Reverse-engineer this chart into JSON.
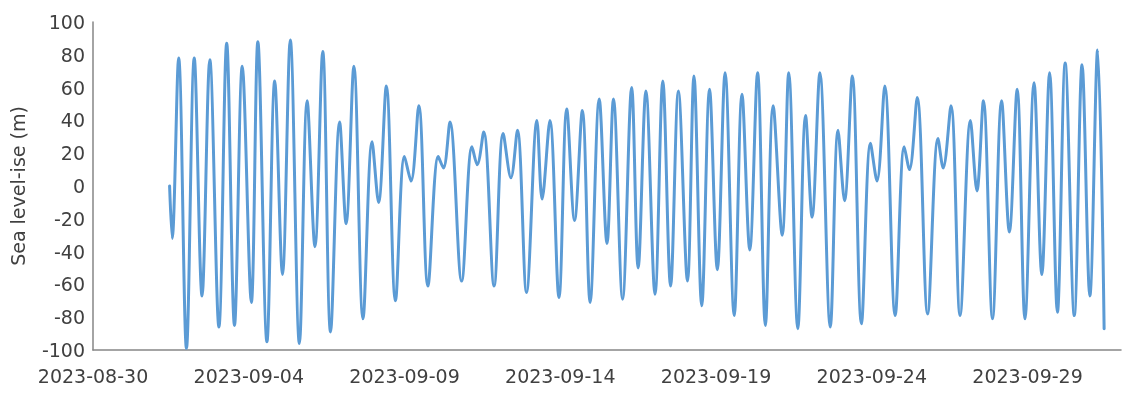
{
  "chart_data": {
    "type": "line",
    "ylabel": "Sea level-ise (m)",
    "color": "#5b9bd5",
    "marker": "none",
    "line_style": "solid",
    "grid": false,
    "xlim": [
      "2023-08-30",
      "2023-10-02"
    ],
    "xticks": [
      "2023-08-30",
      "2023-09-04",
      "2023-09-09",
      "2023-09-14",
      "2023-09-19",
      "2023-09-24",
      "2023-09-29"
    ],
    "ylim": [
      -100,
      100
    ],
    "yticks": [
      -100,
      -80,
      -60,
      -40,
      -20,
      0,
      20,
      40,
      60,
      80,
      100
    ],
    "x": [
      "2023-09-01T11:00",
      "2023-09-01T13:00",
      "2023-09-01T18:00",
      "2023-09-02T00:00",
      "2023-09-02T06:00",
      "2023-09-02T12:00",
      "2023-09-02T18:00",
      "2023-09-03T01:00",
      "2023-09-03T07:00",
      "2023-09-03T13:00",
      "2023-09-03T19:00",
      "2023-09-04T02:00",
      "2023-09-04T07:00",
      "2023-09-04T14:00",
      "2023-09-04T20:00",
      "2023-09-05T02:00",
      "2023-09-05T08:00",
      "2023-09-05T15:00",
      "2023-09-05T21:00",
      "2023-09-06T03:00",
      "2023-09-06T09:00",
      "2023-09-06T15:00",
      "2023-09-06T22:00",
      "2023-09-07T03:00",
      "2023-09-07T09:00",
      "2023-09-07T16:00",
      "2023-09-07T23:00",
      "2023-09-08T04:00",
      "2023-09-08T10:00",
      "2023-09-08T17:00",
      "2023-09-09T00:00",
      "2023-09-09T05:00",
      "2023-09-09T11:00",
      "2023-09-09T18:00",
      "2023-09-10T02:00",
      "2023-09-10T06:00",
      "2023-09-10T11:00",
      "2023-09-10T20:00",
      "2023-09-11T04:00",
      "2023-09-11T08:00",
      "2023-09-11T13:00",
      "2023-09-11T21:00",
      "2023-09-12T04:00",
      "2023-09-12T10:00",
      "2023-09-12T15:00",
      "2023-09-12T22:00",
      "2023-09-13T06:00",
      "2023-09-13T10:00",
      "2023-09-13T16:00",
      "2023-09-13T23:00",
      "2023-09-14T05:00",
      "2023-09-14T11:00",
      "2023-09-14T17:00",
      "2023-09-14T23:00",
      "2023-09-15T06:00",
      "2023-09-15T12:00",
      "2023-09-15T17:00",
      "2023-09-16T00:00",
      "2023-09-16T07:00",
      "2023-09-16T12:00",
      "2023-09-16T18:00",
      "2023-09-17T01:00",
      "2023-09-17T07:00",
      "2023-09-17T13:00",
      "2023-09-17T19:00",
      "2023-09-18T02:00",
      "2023-09-18T07:00",
      "2023-09-18T13:00",
      "2023-09-18T19:00",
      "2023-09-19T01:00",
      "2023-09-19T07:00",
      "2023-09-19T14:00",
      "2023-09-19T20:00",
      "2023-09-20T02:00",
      "2023-09-20T08:00",
      "2023-09-20T14:00",
      "2023-09-20T20:00",
      "2023-09-21T03:00",
      "2023-09-21T08:00",
      "2023-09-21T15:00",
      "2023-09-21T21:00",
      "2023-09-22T02:00",
      "2023-09-22T08:00",
      "2023-09-22T16:00",
      "2023-09-22T22:00",
      "2023-09-23T03:00",
      "2023-09-23T09:00",
      "2023-09-23T16:00",
      "2023-09-23T23:00",
      "2023-09-24T04:00",
      "2023-09-24T10:00",
      "2023-09-24T18:00",
      "2023-09-25T01:00",
      "2023-09-25T05:00",
      "2023-09-25T11:00",
      "2023-09-25T19:00",
      "2023-09-26T03:00",
      "2023-09-26T07:00",
      "2023-09-26T13:00",
      "2023-09-26T20:00",
      "2023-09-27T04:00",
      "2023-09-27T09:00",
      "2023-09-27T14:00",
      "2023-09-27T21:00",
      "2023-09-28T04:00",
      "2023-09-28T10:00",
      "2023-09-28T16:00",
      "2023-09-28T22:00",
      "2023-09-29T05:00",
      "2023-09-29T11:00",
      "2023-09-29T17:00",
      "2023-09-29T23:00",
      "2023-09-30T05:00",
      "2023-09-30T12:00",
      "2023-09-30T18:00",
      "2023-10-01T00:00",
      "2023-10-01T06:00",
      "2023-10-01T11:00"
    ],
    "values": [
      0,
      -32,
      78,
      -99,
      78,
      -67,
      77,
      -86,
      87,
      -85,
      73,
      -71,
      88,
      -95,
      64,
      -54,
      89,
      -96,
      52,
      -37,
      82,
      -89,
      39,
      -23,
      73,
      -81,
      27,
      -10,
      61,
      -70,
      18,
      3,
      49,
      -61,
      18,
      11,
      39,
      -58,
      24,
      13,
      33,
      -61,
      32,
      5,
      34,
      -65,
      40,
      -8,
      40,
      -68,
      47,
      -21,
      46,
      -71,
      53,
      -35,
      53,
      -69,
      60,
      -50,
      58,
      -66,
      64,
      -61,
      58,
      -58,
      67,
      -73,
      59,
      -51,
      69,
      -79,
      56,
      -39,
      69,
      -85,
      49,
      -30,
      69,
      -87,
      43,
      -19,
      69,
      -86,
      34,
      -9,
      67,
      -84,
      26,
      3,
      61,
      -79,
      24,
      10,
      54,
      -78,
      29,
      11,
      49,
      -79,
      40,
      -3,
      52,
      -81,
      52,
      -28,
      59,
      -81,
      63,
      -54,
      69,
      -77,
      75,
      -79,
      74,
      -67,
      83,
      -87
    ]
  }
}
